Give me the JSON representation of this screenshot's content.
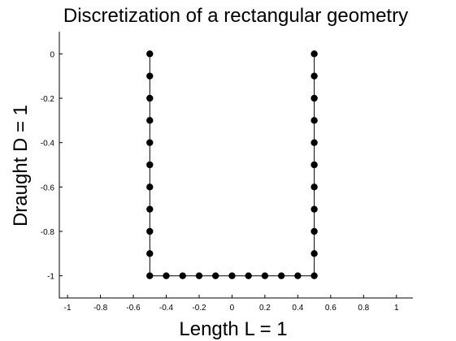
{
  "chart_data": {
    "type": "scatter",
    "title": "Discretization of a rectangular geometry",
    "xlabel": "Length L = 1",
    "ylabel": "Draught D = 1",
    "xlim": [
      -1.05,
      1.1
    ],
    "ylim": [
      -1.1,
      0.1
    ],
    "xticks": [
      -1,
      -0.8,
      -0.6,
      -0.4,
      -0.2,
      0,
      0.2,
      0.4,
      0.6,
      0.8,
      1
    ],
    "xtick_labels": [
      "-1",
      "-0.8",
      "-0.6",
      "-0.4",
      "-0.2",
      "0",
      "0.2",
      "0.4",
      "0.6",
      "0.8",
      "1"
    ],
    "yticks": [
      0,
      -0.2,
      -0.4,
      -0.6,
      -0.8,
      -1
    ],
    "ytick_labels": [
      "0",
      "-0.2",
      "-0.4",
      "-0.6",
      "-0.8",
      "-1"
    ],
    "grid": false,
    "marker_color": "#000000",
    "line_color": "#000000",
    "series": [
      {
        "x": [
          -0.5,
          -0.5,
          -0.5,
          -0.5,
          -0.5,
          -0.5,
          -0.5,
          -0.5,
          -0.5,
          -0.5,
          -0.5,
          -0.4,
          -0.3,
          -0.2,
          -0.1,
          0,
          0.1,
          0.2,
          0.3,
          0.4,
          0.5,
          0.5,
          0.5,
          0.5,
          0.5,
          0.5,
          0.5,
          0.5,
          0.5,
          0.5,
          0.5
        ],
        "y": [
          0,
          -0.1,
          -0.2,
          -0.3,
          -0.4,
          -0.5,
          -0.6,
          -0.7,
          -0.8,
          -0.9,
          -1,
          -1,
          -1,
          -1,
          -1,
          -1,
          -1,
          -1,
          -1,
          -1,
          -1,
          -0.9,
          -0.8,
          -0.7,
          -0.6,
          -0.5,
          -0.4,
          -0.3,
          -0.2,
          -0.1,
          0
        ]
      }
    ]
  }
}
